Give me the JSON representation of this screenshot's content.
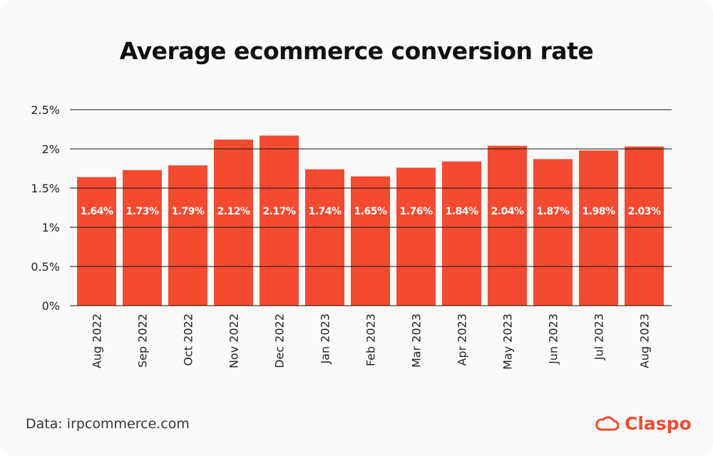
{
  "chart_data": {
    "type": "bar",
    "title": "Average ecommerce conversion rate",
    "categories": [
      "Aug 2022",
      "Sep 2022",
      "Oct 2022",
      "Nov 2022",
      "Dec 2022",
      "Jan 2023",
      "Feb 2023",
      "Mar 2023",
      "Apr 2023",
      "May 2023",
      "Jun 2023",
      "Jul 2023",
      "Aug 2023"
    ],
    "values": [
      1.64,
      1.73,
      1.79,
      2.12,
      2.17,
      1.74,
      1.65,
      1.76,
      1.84,
      2.04,
      1.87,
      1.98,
      2.03
    ],
    "data_labels": [
      "1.64%",
      "1.73%",
      "1.79%",
      "2.12%",
      "2.17%",
      "1.74%",
      "1.65%",
      "1.76%",
      "1.84%",
      "2.04%",
      "1.87%",
      "1.98%",
      "2.03%"
    ],
    "yticks": [
      0,
      0.5,
      1,
      1.5,
      2,
      2.5
    ],
    "ytick_labels": [
      "0%",
      "0.5%",
      "1%",
      "1.5%",
      "2%",
      "2.5%"
    ],
    "ylim": [
      0,
      2.5
    ],
    "xlabel": "",
    "ylabel": "",
    "grid": true,
    "bar_color": "#f44a2f"
  },
  "footer": {
    "source": "Data: irpcommerce.com",
    "brand": "Claspo",
    "brand_color": "#f44a2f"
  }
}
